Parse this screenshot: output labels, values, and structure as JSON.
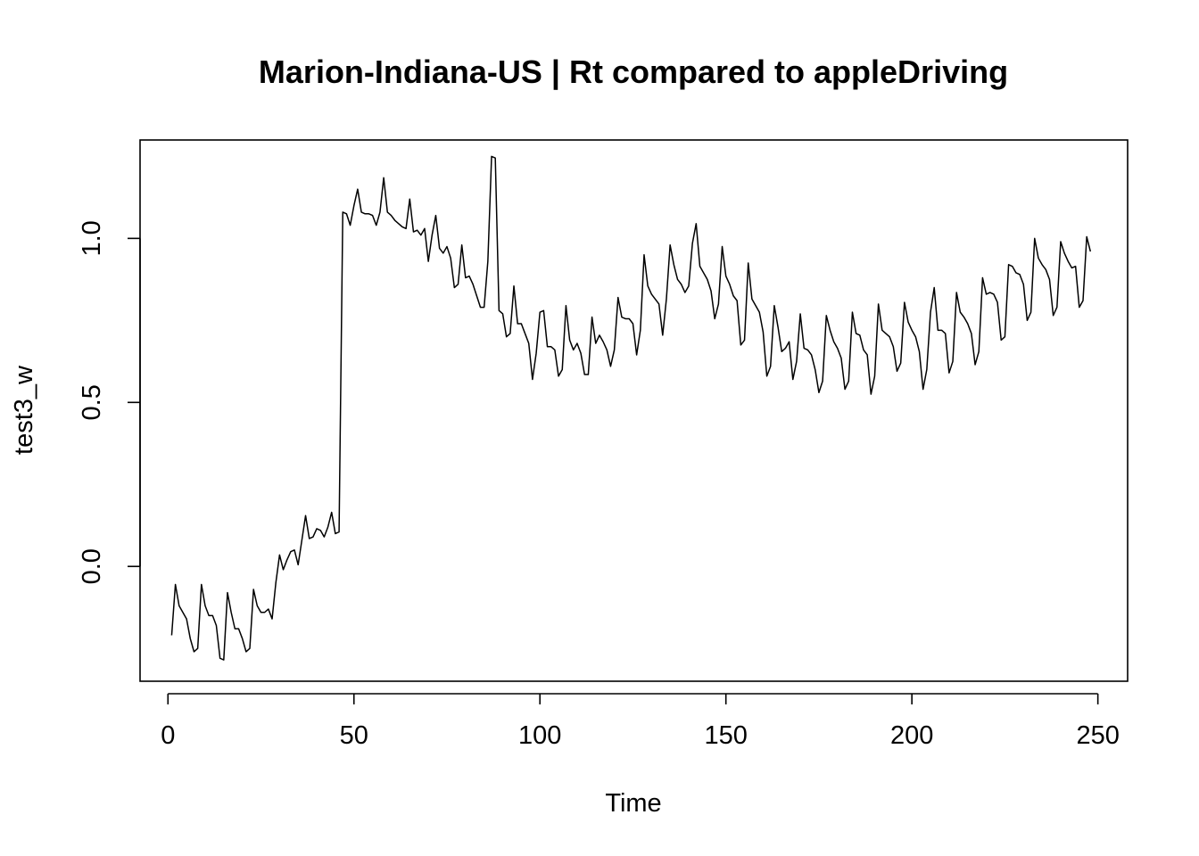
{
  "chart_data": {
    "type": "line",
    "title": "Marion-Indiana-US | Rt compared to appleDriving",
    "xlabel": "Time",
    "ylabel": "test3_w",
    "xlim": [
      -7.5,
      258
    ],
    "ylim": [
      -0.35,
      1.3
    ],
    "xticks": [
      0,
      50,
      100,
      150,
      200,
      250
    ],
    "xtick_labels": [
      "0",
      "50",
      "100",
      "150",
      "200",
      "250"
    ],
    "yticks": [
      0.0,
      0.5,
      1.0
    ],
    "ytick_labels": [
      "0.0",
      "0.5",
      "1.0"
    ],
    "grid": false,
    "legend": "none",
    "series": [
      {
        "color": "#000000",
        "x": [
          1,
          2,
          3,
          4,
          5,
          6,
          7,
          8,
          9,
          10,
          11,
          12,
          13,
          14,
          15,
          16,
          17,
          18,
          19,
          20,
          21,
          22,
          23,
          24,
          25,
          26,
          27,
          28,
          29,
          30,
          31,
          32,
          33,
          34,
          35,
          36,
          37,
          38,
          39,
          40,
          41,
          42,
          43,
          44,
          45,
          46,
          47,
          48,
          49,
          50,
          51,
          52,
          53,
          54,
          55,
          56,
          57,
          58,
          59,
          60,
          61,
          62,
          63,
          64,
          65,
          66,
          67,
          68,
          69,
          70,
          71,
          72,
          73,
          74,
          75,
          76,
          77,
          78,
          79,
          80,
          81,
          82,
          83,
          84,
          85,
          86,
          87,
          88,
          89,
          90,
          91,
          92,
          93,
          94,
          95,
          96,
          97,
          98,
          99,
          100,
          101,
          102,
          103,
          104,
          105,
          106,
          107,
          108,
          109,
          110,
          111,
          112,
          113,
          114,
          115,
          116,
          117,
          118,
          119,
          120,
          121,
          122,
          123,
          124,
          125,
          126,
          127,
          128,
          129,
          130,
          131,
          132,
          133,
          134,
          135,
          136,
          137,
          138,
          139,
          140,
          141,
          142,
          143,
          144,
          145,
          146,
          147,
          148,
          149,
          150,
          151,
          152,
          153,
          154,
          155,
          156,
          157,
          158,
          159,
          160,
          161,
          162,
          163,
          164,
          165,
          166,
          167,
          168,
          169,
          170,
          171,
          172,
          173,
          174,
          175,
          176,
          177,
          178,
          179,
          180,
          181,
          182,
          183,
          184,
          185,
          186,
          187,
          188,
          189,
          190,
          191,
          192,
          193,
          194,
          195,
          196,
          197,
          198,
          199,
          200,
          201,
          202,
          203,
          204,
          205,
          206,
          207,
          208,
          209,
          210,
          211,
          212,
          213,
          214,
          215,
          216,
          217,
          218,
          219,
          220,
          221,
          222,
          223,
          224,
          225,
          226,
          227,
          228,
          229,
          230,
          231,
          232,
          233,
          234,
          235,
          236,
          237,
          238,
          239,
          240,
          241,
          242,
          243,
          244,
          245,
          246,
          247,
          248
        ],
        "y": [
          -0.21,
          -0.055,
          -0.12,
          -0.14,
          -0.16,
          -0.22,
          -0.26,
          -0.25,
          -0.055,
          -0.12,
          -0.15,
          -0.15,
          -0.18,
          -0.28,
          -0.285,
          -0.08,
          -0.14,
          -0.19,
          -0.19,
          -0.22,
          -0.26,
          -0.25,
          -0.07,
          -0.12,
          -0.14,
          -0.14,
          -0.13,
          -0.16,
          -0.05,
          0.035,
          -0.01,
          0.02,
          0.045,
          0.05,
          0.005,
          0.08,
          0.155,
          0.085,
          0.09,
          0.115,
          0.11,
          0.09,
          0.12,
          0.165,
          0.1,
          0.105,
          1.08,
          1.075,
          1.04,
          1.1,
          1.15,
          1.08,
          1.075,
          1.075,
          1.07,
          1.04,
          1.08,
          1.185,
          1.08,
          1.07,
          1.055,
          1.045,
          1.035,
          1.03,
          1.12,
          1.02,
          1.025,
          1.01,
          1.03,
          0.93,
          1.01,
          1.07,
          0.97,
          0.955,
          0.975,
          0.94,
          0.85,
          0.86,
          0.98,
          0.88,
          0.885,
          0.86,
          0.825,
          0.79,
          0.79,
          0.93,
          1.25,
          1.245,
          0.78,
          0.77,
          0.7,
          0.71,
          0.855,
          0.74,
          0.74,
          0.71,
          0.68,
          0.57,
          0.65,
          0.775,
          0.78,
          0.67,
          0.67,
          0.66,
          0.58,
          0.6,
          0.795,
          0.69,
          0.66,
          0.68,
          0.65,
          0.585,
          0.585,
          0.76,
          0.68,
          0.705,
          0.685,
          0.66,
          0.61,
          0.66,
          0.82,
          0.76,
          0.755,
          0.755,
          0.74,
          0.645,
          0.72,
          0.95,
          0.855,
          0.83,
          0.815,
          0.8,
          0.705,
          0.815,
          0.98,
          0.92,
          0.875,
          0.86,
          0.835,
          0.855,
          0.985,
          1.045,
          0.915,
          0.895,
          0.875,
          0.84,
          0.755,
          0.8,
          0.975,
          0.885,
          0.86,
          0.825,
          0.81,
          0.675,
          0.69,
          0.925,
          0.815,
          0.795,
          0.775,
          0.715,
          0.58,
          0.61,
          0.795,
          0.73,
          0.655,
          0.665,
          0.685,
          0.57,
          0.625,
          0.77,
          0.665,
          0.66,
          0.645,
          0.6,
          0.53,
          0.565,
          0.765,
          0.72,
          0.685,
          0.665,
          0.635,
          0.54,
          0.565,
          0.775,
          0.71,
          0.705,
          0.66,
          0.645,
          0.525,
          0.58,
          0.8,
          0.72,
          0.71,
          0.7,
          0.67,
          0.595,
          0.62,
          0.805,
          0.745,
          0.72,
          0.7,
          0.655,
          0.54,
          0.6,
          0.775,
          0.85,
          0.72,
          0.72,
          0.71,
          0.59,
          0.625,
          0.835,
          0.775,
          0.76,
          0.74,
          0.71,
          0.615,
          0.655,
          0.88,
          0.83,
          0.835,
          0.83,
          0.805,
          0.69,
          0.7,
          0.92,
          0.915,
          0.895,
          0.89,
          0.86,
          0.75,
          0.775,
          1.0,
          0.94,
          0.92,
          0.905,
          0.875,
          0.765,
          0.79,
          0.99,
          0.955,
          0.93,
          0.91,
          0.915,
          0.79,
          0.81,
          1.005,
          0.96
        ]
      }
    ]
  }
}
